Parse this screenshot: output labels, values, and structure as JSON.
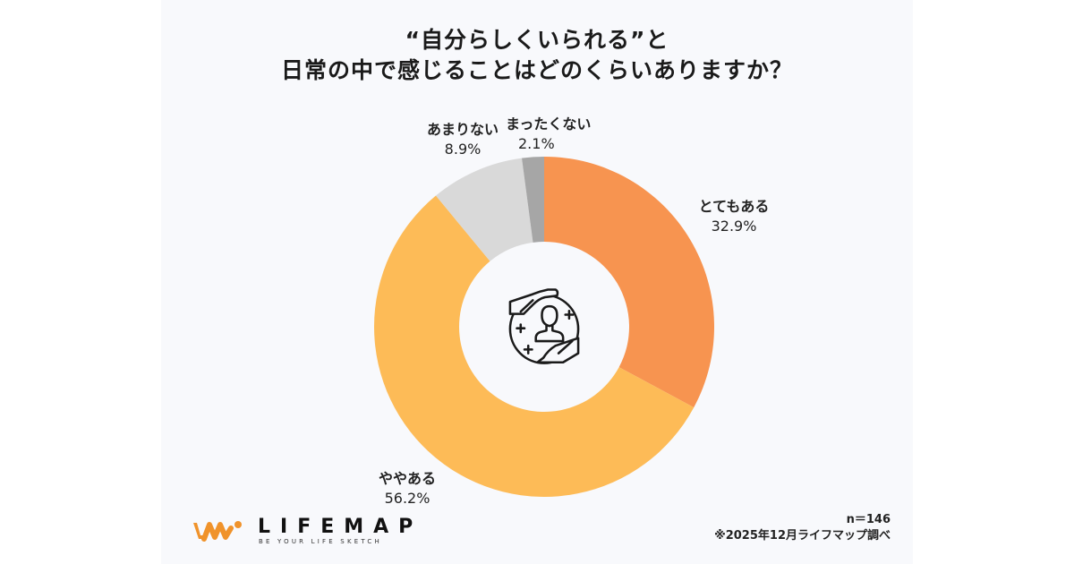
{
  "title": {
    "line1": "“自分らしくいられる”と",
    "line2": "日常の中で感じることはどのくらいありますか？"
  },
  "chart_data": {
    "type": "pie",
    "subtype": "donut",
    "title": "“自分らしくいられる”と日常の中で感じることはどのくらいありますか？",
    "categories": [
      "とてもある",
      "ややある",
      "あまりない",
      "まったくない"
    ],
    "values": [
      32.9,
      56.2,
      8.9,
      2.1
    ],
    "unit": "%",
    "colors": [
      "#f79450",
      "#fdbb57",
      "#d9d9d9",
      "#a6a6a6"
    ],
    "start_angle": "12 o'clock",
    "direction": "clockwise",
    "legend": "inline labels",
    "sample_size": "n＝146"
  },
  "labels": [
    {
      "name": "とてもある",
      "pct": "32.9%"
    },
    {
      "name": "ややある",
      "pct": "56.2%"
    },
    {
      "name": "あまりない",
      "pct": "8.9%"
    },
    {
      "name": "まったくない",
      "pct": "2.1%"
    }
  ],
  "center_icon": "person-protected-by-hands-icon",
  "footer": {
    "n": "n＝146",
    "source": "※2025年12月ライフマップ調べ"
  },
  "logo": {
    "name": "LIFEMAP",
    "tagline": "BE YOUR LIFE SKETCH",
    "color": "#f0932b"
  }
}
